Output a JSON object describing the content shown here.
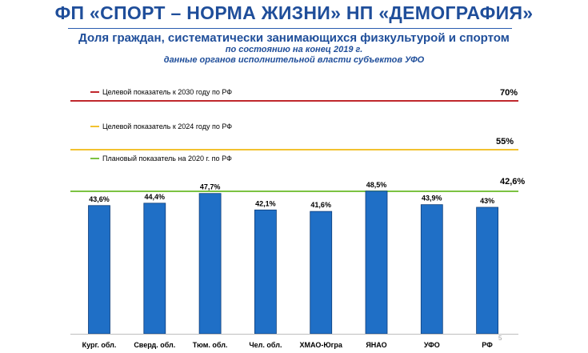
{
  "slide": {
    "title": "ФП «СПОРТ – НОРМА ЖИЗНИ» НП «ДЕМОГРАФИЯ»",
    "subtitle": "Доля граждан, систематически занимающихся физкультурой и спортом",
    "subtitle_line2": "по состоянию на конец 2019 г.",
    "subtitle_line3": "данные органов исполнительной власти субъектов УФО",
    "page_number": "5"
  },
  "chart_data": {
    "type": "bar",
    "title": "Доля граждан, систематически занимающихся физкультурой и спортом",
    "categories": [
      "Кург. обл.",
      "Сверд. обл.",
      "Тюм. обл.",
      "Чел. обл.",
      "ХМАО-Югра",
      "ЯНАО",
      "УФО",
      "РФ"
    ],
    "series": [
      {
        "values": [
          43.6,
          44.4,
          47.7,
          42.1,
          41.6,
          48.5,
          43.9,
          43.0
        ],
        "labels": [
          "43,6%",
          "44,4%",
          "47,7%",
          "42,1%",
          "41,6%",
          "48,5%",
          "43,9%",
          "43%"
        ],
        "color": "#1f6fc6"
      }
    ],
    "reference_lines": [
      {
        "label": "Целевой показатель к 2030 году по РФ",
        "value": 70,
        "value_label": "70%",
        "color": "#c0282d"
      },
      {
        "label": "Целевой показатель к 2024 году по РФ",
        "value": 55,
        "value_label": "55%",
        "color": "#f2c230"
      },
      {
        "label": "Плановый показатель на 2020 г. по РФ",
        "value": 42.6,
        "value_label": "42,6%",
        "color": "#7cc242"
      }
    ],
    "grid": false,
    "legend": "none"
  }
}
